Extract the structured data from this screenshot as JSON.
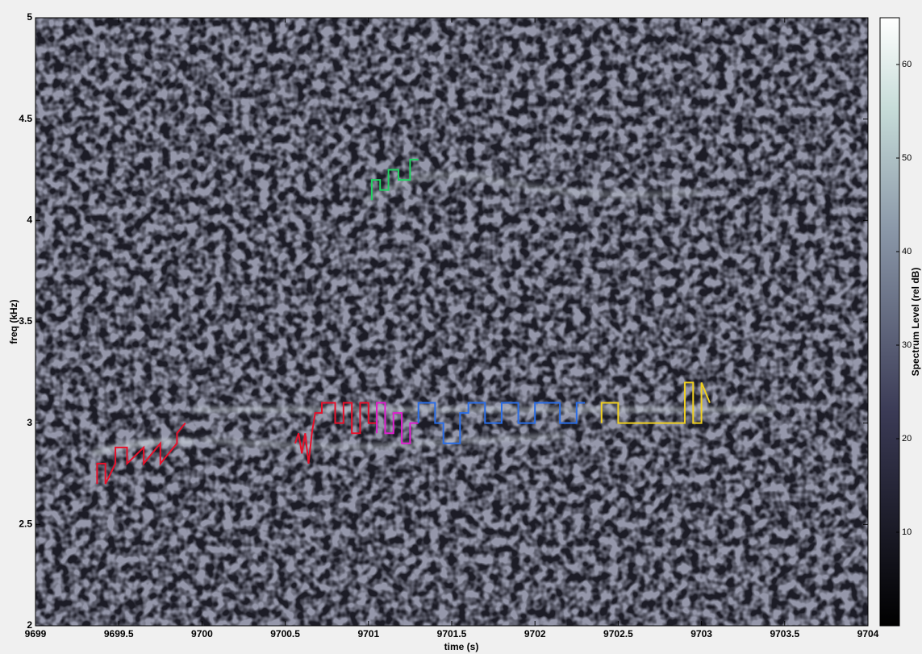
{
  "chart_data": {
    "type": "line",
    "x_label": "time (s)",
    "y_label": "freq (kHz)",
    "xlim": [
      9699,
      9704
    ],
    "xticks": [
      9699,
      9699.5,
      9700,
      9700.5,
      9701,
      9701.5,
      9702,
      9702.5,
      9703,
      9703.5,
      9704
    ],
    "ylim": [
      2,
      5
    ],
    "yticks": [
      2,
      2.5,
      3,
      3.5,
      4,
      4.5,
      5
    ],
    "series": [
      {
        "color": "#e8102a",
        "x": [
          9699.37,
          9699.37,
          9699.42,
          9699.42,
          9699.48,
          9699.48,
          9699.55,
          9699.55,
          9699.65,
          9699.65,
          9699.75,
          9699.75,
          9699.85,
          9699.85,
          9699.9
        ],
        "values": [
          2.7,
          2.8,
          2.8,
          2.7,
          2.8,
          2.88,
          2.88,
          2.8,
          2.88,
          2.8,
          2.9,
          2.8,
          2.9,
          2.95,
          3.0
        ]
      },
      {
        "color": "#e8102a",
        "x": [
          9700.56,
          9700.58,
          9700.6,
          9700.62,
          9700.64,
          9700.66,
          9700.68,
          9700.72,
          9700.72,
          9700.8,
          9700.8,
          9700.85,
          9700.85,
          9700.9,
          9700.9,
          9700.95,
          9700.95,
          9701.0,
          9701.0,
          9701.05,
          9701.05,
          9701.1
        ],
        "values": [
          2.9,
          2.95,
          2.85,
          2.95,
          2.8,
          2.95,
          3.05,
          3.05,
          3.1,
          3.1,
          3.0,
          3.0,
          3.1,
          3.1,
          2.95,
          2.95,
          3.1,
          3.1,
          3.0,
          3.0,
          3.1,
          3.1
        ]
      },
      {
        "color": "#e020d0",
        "x": [
          9701.05,
          9701.05,
          9701.1,
          9701.1,
          9701.15,
          9701.15,
          9701.2,
          9701.2,
          9701.25,
          9701.25,
          9701.3
        ],
        "values": [
          2.95,
          3.1,
          3.1,
          2.95,
          2.95,
          3.05,
          3.05,
          2.9,
          2.9,
          3.0,
          3.0
        ]
      },
      {
        "color": "#2a6ee8",
        "x": [
          9701.3,
          9701.3,
          9701.4,
          9701.4,
          9701.45,
          9701.45,
          9701.55,
          9701.55,
          9701.6,
          9701.6,
          9701.7,
          9701.7,
          9701.8,
          9701.8,
          9701.9,
          9701.9,
          9702.0,
          9702.0,
          9702.15,
          9702.15,
          9702.25,
          9702.25,
          9702.3
        ],
        "values": [
          3.0,
          3.1,
          3.1,
          3.0,
          3.0,
          2.9,
          2.9,
          3.05,
          3.05,
          3.1,
          3.1,
          3.0,
          3.0,
          3.1,
          3.1,
          3.0,
          3.0,
          3.1,
          3.1,
          3.0,
          3.0,
          3.1,
          3.1
        ]
      },
      {
        "color": "#f0d020",
        "x": [
          9702.4,
          9702.4,
          9702.5,
          9702.5,
          9702.9,
          9702.9,
          9702.95,
          9702.95,
          9703.0,
          9703.0,
          9703.05
        ],
        "values": [
          3.0,
          3.1,
          3.1,
          3.0,
          3.0,
          3.2,
          3.2,
          3.0,
          3.0,
          3.2,
          3.1
        ]
      },
      {
        "color": "#20d060",
        "x": [
          9701.02,
          9701.02,
          9701.07,
          9701.07,
          9701.12,
          9701.12,
          9701.18,
          9701.18,
          9701.25,
          9701.25,
          9701.3
        ],
        "values": [
          4.1,
          4.2,
          4.2,
          4.15,
          4.15,
          4.25,
          4.25,
          4.2,
          4.2,
          4.3,
          4.3
        ]
      }
    ],
    "colorbar": {
      "label": "Spectrum Level (rel dB)",
      "lim": [
        0,
        65
      ],
      "ticks": [
        10,
        20,
        30,
        40,
        50,
        60
      ]
    }
  }
}
